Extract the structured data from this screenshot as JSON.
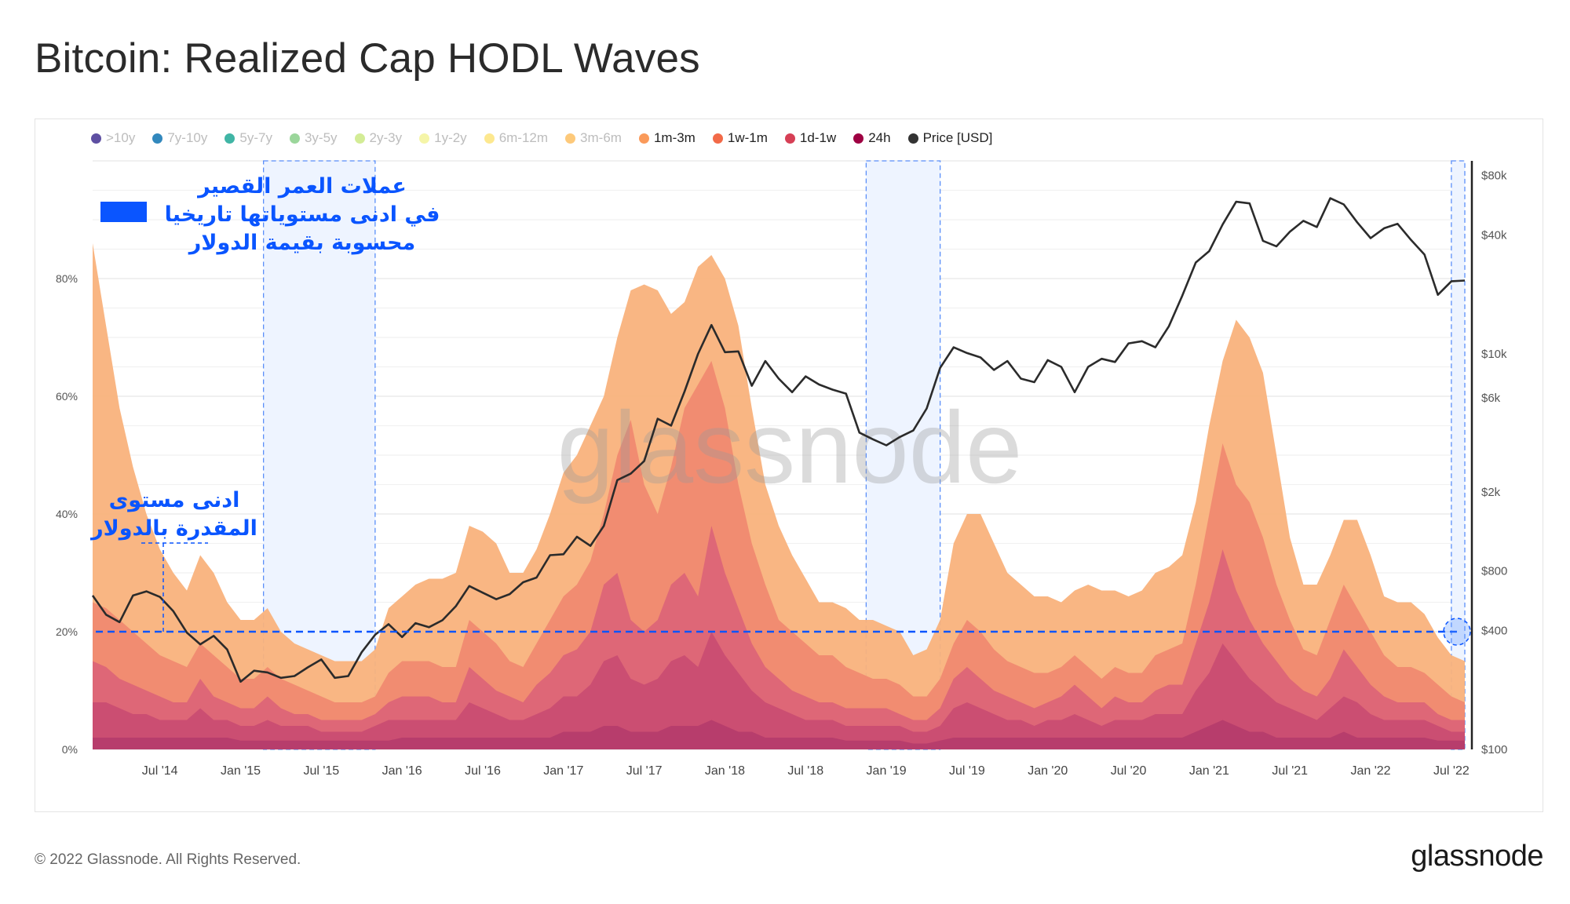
{
  "title": "Bitcoin: Realized Cap HODL Waves",
  "footer": "© 2022 Glassnode. All Rights Reserved.",
  "logo": "glassnode",
  "watermark": "glassnode",
  "annotations": {
    "main": [
      "عملات العمر القصير",
      "في ادنى مستوياتها تاريخيا",
      "محسوبة بقيمة الدولار"
    ],
    "low": [
      "ادنى مستوى",
      "المقدرة بالدولار"
    ],
    "accent_color": "#0a55ff",
    "threshold_percent": 20
  },
  "chart_data": {
    "type": "area",
    "title": "Bitcoin: Realized Cap HODL Waves",
    "stacked": true,
    "start_month": "2014-02",
    "end_month": "2022-08",
    "legend": [
      {
        "name": ">10y",
        "color": "#5e4fa2",
        "enabled": false
      },
      {
        "name": "7y-10y",
        "color": "#3288bd",
        "enabled": false
      },
      {
        "name": "5y-7y",
        "color": "#40b5a5",
        "enabled": false
      },
      {
        "name": "3y-5y",
        "color": "#9bd69b",
        "enabled": false
      },
      {
        "name": "2y-3y",
        "color": "#d3ec96",
        "enabled": false
      },
      {
        "name": "1y-2y",
        "color": "#f5f5a8",
        "enabled": false
      },
      {
        "name": "6m-12m",
        "color": "#fde88f",
        "enabled": false
      },
      {
        "name": "3m-6m",
        "color": "#fdc97a",
        "enabled": false
      },
      {
        "name": "1m-3m",
        "color": "#fa9a5a",
        "enabled": true
      },
      {
        "name": "1w-1m",
        "color": "#f26a48",
        "enabled": true
      },
      {
        "name": "1d-1w",
        "color": "#d63f55",
        "enabled": true
      },
      {
        "name": "24h",
        "color": "#9e0142",
        "enabled": true
      },
      {
        "name": "Price [USD]",
        "color": "#333333",
        "enabled": true
      }
    ],
    "note_series": "stack_top values are cumulative percent of realized cap (top edge of each band)",
    "stack_top": [
      {
        "name": "3m-6m",
        "fill": "#f9b27c",
        "values": [
          86,
          72,
          58,
          48,
          40,
          34,
          30,
          27,
          33,
          30,
          25,
          22,
          22,
          24,
          20,
          18,
          17,
          16,
          15,
          15,
          15,
          17,
          24,
          26,
          28,
          29,
          29,
          30,
          38,
          37,
          35,
          30,
          30,
          34,
          40,
          47,
          50,
          55,
          60,
          70,
          78,
          79,
          78,
          74,
          76,
          82,
          84,
          80,
          72,
          58,
          45,
          38,
          33,
          29,
          25,
          25,
          24,
          22,
          22,
          21,
          20,
          16,
          17,
          22,
          35,
          40,
          40,
          35,
          30,
          28,
          26,
          26,
          25,
          27,
          28,
          27,
          27,
          26,
          27,
          30,
          31,
          33,
          42,
          55,
          66,
          73,
          70,
          64,
          50,
          36,
          28,
          28,
          33,
          39,
          39,
          33,
          26,
          25,
          25,
          23,
          19,
          16,
          15
        ]
      },
      {
        "name": "1m-3m",
        "fill": "#f08a70",
        "values": [
          25,
          24,
          22,
          20,
          18,
          16,
          15,
          14,
          18,
          16,
          14,
          12,
          12,
          14,
          12,
          11,
          10,
          9,
          8,
          8,
          8,
          9,
          13,
          15,
          15,
          15,
          14,
          14,
          22,
          20,
          18,
          15,
          14,
          18,
          22,
          26,
          28,
          32,
          40,
          50,
          56,
          45,
          40,
          48,
          58,
          62,
          66,
          58,
          45,
          35,
          28,
          22,
          20,
          18,
          16,
          16,
          14,
          13,
          12,
          12,
          11,
          9,
          9,
          12,
          18,
          22,
          20,
          17,
          15,
          14,
          13,
          13,
          14,
          16,
          14,
          12,
          14,
          13,
          13,
          16,
          17,
          18,
          28,
          40,
          52,
          45,
          42,
          36,
          28,
          22,
          17,
          16,
          22,
          28,
          24,
          20,
          16,
          14,
          14,
          13,
          11,
          9,
          8
        ]
      },
      {
        "name": "1w-1m",
        "fill": "#dc6577",
        "values": [
          15,
          14,
          12,
          11,
          10,
          9,
          8,
          8,
          12,
          9,
          8,
          7,
          7,
          9,
          7,
          6,
          6,
          5,
          5,
          5,
          5,
          6,
          8,
          9,
          9,
          9,
          8,
          8,
          14,
          12,
          10,
          9,
          8,
          11,
          13,
          16,
          17,
          20,
          28,
          30,
          22,
          20,
          22,
          28,
          30,
          26,
          38,
          30,
          24,
          18,
          14,
          12,
          10,
          9,
          8,
          8,
          7,
          7,
          7,
          7,
          6,
          5,
          5,
          7,
          12,
          14,
          12,
          10,
          9,
          8,
          7,
          8,
          9,
          11,
          9,
          7,
          9,
          8,
          8,
          10,
          11,
          11,
          18,
          25,
          34,
          27,
          22,
          18,
          15,
          12,
          10,
          9,
          12,
          17,
          14,
          11,
          9,
          8,
          8,
          8,
          6,
          5,
          5
        ]
      },
      {
        "name": "1d-1w",
        "fill": "#c94d72",
        "values": [
          8,
          8,
          7,
          6,
          6,
          5,
          5,
          5,
          7,
          5,
          5,
          4,
          4,
          5,
          4,
          4,
          4,
          3,
          3,
          3,
          3,
          4,
          5,
          5,
          5,
          5,
          5,
          5,
          8,
          7,
          6,
          5,
          5,
          6,
          7,
          9,
          9,
          11,
          15,
          16,
          12,
          11,
          12,
          15,
          16,
          14,
          20,
          16,
          13,
          10,
          8,
          7,
          6,
          5,
          5,
          5,
          4,
          4,
          4,
          4,
          4,
          3,
          3,
          4,
          7,
          8,
          7,
          6,
          5,
          5,
          4,
          5,
          5,
          6,
          5,
          4,
          5,
          5,
          5,
          6,
          6,
          6,
          10,
          13,
          18,
          15,
          12,
          10,
          8,
          7,
          6,
          5,
          7,
          9,
          8,
          6,
          5,
          5,
          5,
          5,
          4,
          3,
          3
        ]
      },
      {
        "name": "24h",
        "fill": "#b53c6c",
        "values": [
          2,
          2,
          2,
          2,
          2,
          2,
          2,
          2,
          2,
          2,
          2,
          1.5,
          1.5,
          1.5,
          1.5,
          1.5,
          1.5,
          1.5,
          1.5,
          1.5,
          1.5,
          1.5,
          1.5,
          2,
          2,
          2,
          2,
          2,
          2,
          2,
          2,
          2,
          2,
          2,
          2,
          3,
          3,
          3,
          4,
          4,
          3,
          3,
          3,
          4,
          4,
          4,
          5,
          4,
          3,
          3,
          2,
          2,
          2,
          2,
          2,
          2,
          1.5,
          1.5,
          1.5,
          1.5,
          1.5,
          1,
          1,
          1.5,
          2,
          2,
          2,
          2,
          2,
          2,
          2,
          2,
          2,
          2,
          2,
          2,
          2,
          2,
          2,
          2,
          2,
          2,
          3,
          4,
          5,
          4,
          3,
          3,
          2,
          2,
          2,
          2,
          2,
          3,
          2,
          2,
          2,
          2,
          2,
          2,
          1.5,
          1.5,
          1.5
        ]
      }
    ],
    "price_usd": {
      "name": "Price [USD]",
      "color": "#2b2b2b",
      "values": [
        600,
        480,
        440,
        600,
        630,
        590,
        500,
        390,
        340,
        375,
        320,
        220,
        250,
        245,
        230,
        235,
        260,
        285,
        230,
        235,
        310,
        380,
        430,
        370,
        435,
        415,
        450,
        530,
        670,
        620,
        575,
        610,
        700,
        740,
        960,
        970,
        1190,
        1070,
        1350,
        2300,
        2480,
        2870,
        4700,
        4340,
        6450,
        10000,
        14000,
        10200,
        10300,
        6900,
        9200,
        7500,
        6400,
        7700,
        7000,
        6600,
        6300,
        4000,
        3700,
        3450,
        3800,
        4100,
        5300,
        8500,
        10800,
        10100,
        9600,
        8300,
        9200,
        7500,
        7200,
        9300,
        8600,
        6400,
        8600,
        9450,
        9100,
        11300,
        11600,
        10800,
        13800,
        19700,
        29000,
        33100,
        45100,
        58800,
        57700,
        37300,
        35000,
        41500,
        47100,
        43800,
        61300,
        57000,
        46300,
        38500,
        43200,
        45500,
        37700,
        31800,
        19900,
        23300,
        23500
      ]
    },
    "x_ticks": [
      {
        "label": "Jul '14",
        "month_index": 5
      },
      {
        "label": "Jan '15",
        "month_index": 11
      },
      {
        "label": "Jul '15",
        "month_index": 17
      },
      {
        "label": "Jan '16",
        "month_index": 23
      },
      {
        "label": "Jul '16",
        "month_index": 29
      },
      {
        "label": "Jan '17",
        "month_index": 35
      },
      {
        "label": "Jul '17",
        "month_index": 41
      },
      {
        "label": "Jan '18",
        "month_index": 47
      },
      {
        "label": "Jul '18",
        "month_index": 53
      },
      {
        "label": "Jan '19",
        "month_index": 59
      },
      {
        "label": "Jul '19",
        "month_index": 65
      },
      {
        "label": "Jan '20",
        "month_index": 71
      },
      {
        "label": "Jul '20",
        "month_index": 77
      },
      {
        "label": "Jan '21",
        "month_index": 83
      },
      {
        "label": "Jul '21",
        "month_index": 89
      },
      {
        "label": "Jan '22",
        "month_index": 95
      },
      {
        "label": "Jul '22",
        "month_index": 101
      }
    ],
    "y_left": {
      "ylim": [
        0,
        100
      ],
      "ticks": [
        {
          "label": "0%",
          "value": 0
        },
        {
          "label": "20%",
          "value": 20
        },
        {
          "label": "40%",
          "value": 40
        },
        {
          "label": "60%",
          "value": 60
        },
        {
          "label": "80%",
          "value": 80
        }
      ]
    },
    "y_right": {
      "scale": "log",
      "ylim": [
        100,
        80000
      ],
      "ticks": [
        {
          "label": "$80k",
          "value": 80000
        },
        {
          "label": "$40k",
          "value": 40000
        },
        {
          "label": "$10k",
          "value": 10000
        },
        {
          "label": "$6k",
          "value": 6000
        },
        {
          "label": "$2k",
          "value": 2000
        },
        {
          "label": "$800",
          "value": 800
        },
        {
          "label": "$400",
          "value": 400
        },
        {
          "label": "$100",
          "value": 100
        }
      ]
    },
    "highlight_ranges_month_index": [
      [
        12.7,
        21
      ],
      [
        57.5,
        63
      ],
      [
        101,
        102.4
      ]
    ],
    "grid": true,
    "legend_position": "top-left"
  }
}
